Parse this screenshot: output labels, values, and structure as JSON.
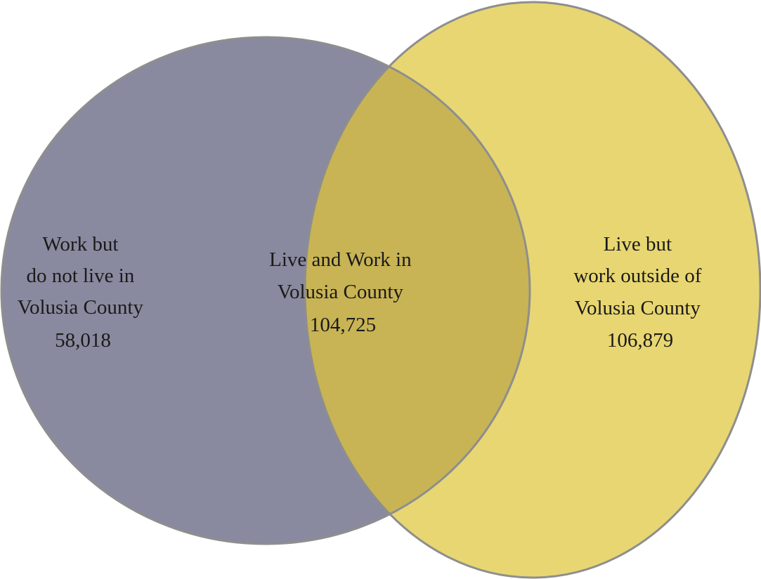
{
  "colors": {
    "left_circle": "#898a9f",
    "right_circle": "#e8d672",
    "overlap": "#c8b455",
    "outline": "#8e8e8e",
    "text": "#1a1a1a"
  },
  "regions": {
    "left": {
      "lines": [
        "Work but",
        "do not live in",
        "Volusia County",
        "58,018"
      ],
      "count": 58018
    },
    "overlap": {
      "lines": [
        "Live and Work in",
        "Volusia County",
        "104,725"
      ],
      "count": 104725
    },
    "right": {
      "lines": [
        "Live but",
        "work outside of",
        "Volusia County",
        "106,879"
      ],
      "count": 106879
    }
  }
}
